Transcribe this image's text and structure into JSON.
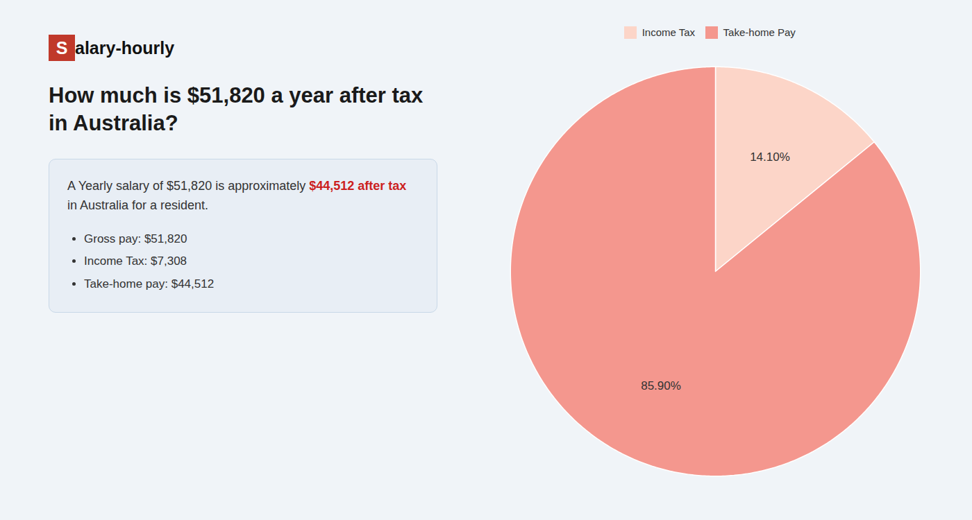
{
  "chart_data": {
    "type": "pie",
    "title": "How much is $51,820 a year after tax in Australia?",
    "logo": {
      "text": [
        "S",
        "alary-hourly"
      ],
      "color": "#c0392b"
    },
    "annotations": [
      {
        "text": "A Yearly salary of $51,820 is approximately "
      },
      {
        "text": "$44,512 after tax",
        "color": "#cc1f1f"
      },
      {
        "text": " in Australia for a resident."
      }
    ],
    "bullets": [
      "Gross pay: $51,820",
      "Income Tax: $7,308",
      "Take-home pay: $44,512"
    ],
    "categories": [
      "Income Tax",
      "Take-home Pay"
    ],
    "values": [
      14.1,
      85.9
    ],
    "value_labels": [
      "14.10%",
      "85.90%"
    ],
    "colors": [
      "#fcd5c8",
      "#f4978e"
    ],
    "legend": "top",
    "data_labels": true
  }
}
